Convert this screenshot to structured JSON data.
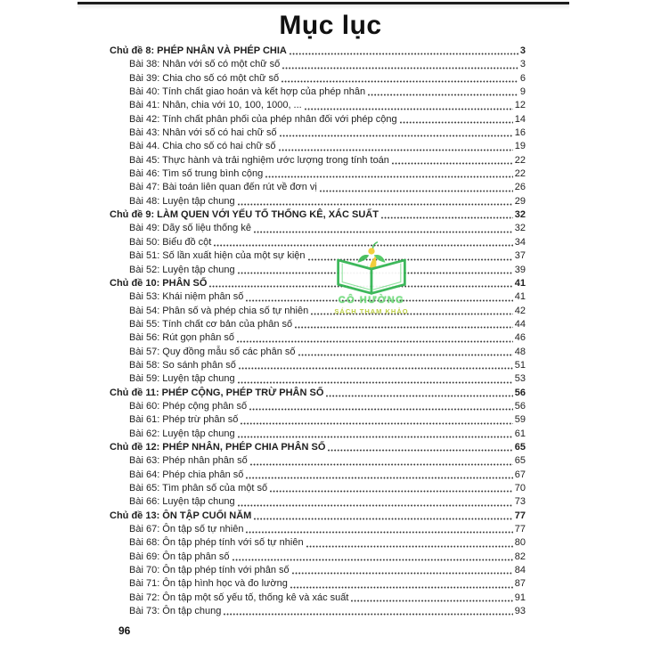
{
  "page": {
    "title": "Mục lục",
    "footer_page_number": "96"
  },
  "watermark": {
    "icon": "open-book-logo-icon",
    "line1": "CÔ HƯỜNG",
    "line2": "SÁCH THAM KHẢO",
    "colors": {
      "book_green": "#2fb34f",
      "leaf_green": "#3dbb54",
      "flame_yellow": "#f2cb2e",
      "text_green": "#6fdd79",
      "text_olive": "#b7cb34"
    }
  },
  "toc": {
    "entries": [
      {
        "level": "chapter",
        "label": "Chủ đề 8: PHÉP NHÂN VÀ PHÉP CHIA",
        "page": "3"
      },
      {
        "level": "lesson",
        "label": "Bài 38: Nhân với số có một chữ số",
        "page": "3"
      },
      {
        "level": "lesson",
        "label": "Bài 39: Chia cho số có một chữ số",
        "page": "6"
      },
      {
        "level": "lesson",
        "label": "Bài 40: Tính chất giao hoán và kết hợp của phép nhân",
        "page": "9"
      },
      {
        "level": "lesson",
        "label": "Bài 41: Nhân, chia với 10, 100, 1000, ...",
        "page": "12"
      },
      {
        "level": "lesson",
        "label": "Bài 42: Tính chất phân phối của phép nhân đối với phép cộng",
        "page": "14"
      },
      {
        "level": "lesson",
        "label": "Bài 43: Nhân với số có hai chữ số",
        "page": "16"
      },
      {
        "level": "lesson",
        "label": "Bài 44. Chia cho số có hai chữ số",
        "page": "19"
      },
      {
        "level": "lesson",
        "label": "Bài 45: Thực hành và trải nghiệm ước lượng trong tính toán",
        "page": "22"
      },
      {
        "level": "lesson",
        "label": "Bài 46: Tìm số trung bình cộng",
        "page": "22"
      },
      {
        "level": "lesson",
        "label": "Bài 47: Bài toán liên quan đến rút về đơn vị",
        "page": "26"
      },
      {
        "level": "lesson",
        "label": "Bài 48: Luyện tập chung",
        "page": "29"
      },
      {
        "level": "chapter",
        "label": "Chủ đề 9: LÀM QUEN VỚI YẾU TỐ THỐNG KÊ, XÁC SUẤT",
        "page": "32"
      },
      {
        "level": "lesson",
        "label": "Bài 49: Dãy số liệu thống kê",
        "page": "32"
      },
      {
        "level": "lesson",
        "label": "Bài 50: Biểu đồ cột",
        "page": "34"
      },
      {
        "level": "lesson",
        "label": "Bài 51: Số lần xuất hiện của một sự kiện",
        "page": "37"
      },
      {
        "level": "lesson",
        "label": "Bài 52: Luyện tập chung",
        "page": "39"
      },
      {
        "level": "chapter",
        "label": "Chủ đề 10: PHÂN SỐ",
        "page": "41"
      },
      {
        "level": "lesson",
        "label": "Bài 53: Khái niệm phân số",
        "page": "41"
      },
      {
        "level": "lesson",
        "label": "Bài 54: Phân số và phép chia số tự nhiên",
        "page": "42"
      },
      {
        "level": "lesson",
        "label": "Bài 55: Tính chất cơ bản của phân số",
        "page": "44"
      },
      {
        "level": "lesson",
        "label": "Bài 56: Rút gọn phân số",
        "page": "46"
      },
      {
        "level": "lesson",
        "label": "Bài 57: Quy đồng mẫu số các phân số",
        "page": "48"
      },
      {
        "level": "lesson",
        "label": "Bài 58: So sánh phân số",
        "page": "51"
      },
      {
        "level": "lesson",
        "label": "Bài 59: Luyện tập chung",
        "page": "53"
      },
      {
        "level": "chapter",
        "label": "Chủ đề 11: PHÉP CỘNG, PHÉP TRỪ PHÂN SỐ",
        "page": "56"
      },
      {
        "level": "lesson",
        "label": "Bài 60: Phép cộng phân số",
        "page": "56"
      },
      {
        "level": "lesson",
        "label": "Bài 61: Phép trừ phân số",
        "page": "59"
      },
      {
        "level": "lesson",
        "label": "Bài 62: Luyện tập chung",
        "page": "61"
      },
      {
        "level": "chapter",
        "label": "Chủ đề 12: PHÉP NHÂN, PHÉP CHIA PHÂN SỐ",
        "page": "65"
      },
      {
        "level": "lesson",
        "label": "Bài 63: Phép nhân phân số",
        "page": "65"
      },
      {
        "level": "lesson",
        "label": "Bài 64: Phép chia phân số",
        "page": "67"
      },
      {
        "level": "lesson",
        "label": "Bài 65: Tìm phân số của một số",
        "page": "70"
      },
      {
        "level": "lesson",
        "label": "Bài 66: Luyện tập chung",
        "page": "73"
      },
      {
        "level": "chapter",
        "label": "Chủ đề 13: ÔN TẬP CUỐI NĂM",
        "page": "77"
      },
      {
        "level": "lesson",
        "label": "Bài 67: Ôn tập số tự nhiên",
        "page": "77"
      },
      {
        "level": "lesson",
        "label": "Bài 68: Ôn tập phép tính với số tự nhiên",
        "page": "80"
      },
      {
        "level": "lesson",
        "label": "Bài 69: Ôn tập phân số",
        "page": "82"
      },
      {
        "level": "lesson",
        "label": "Bài 70: Ôn tập phép tính với phân số",
        "page": "84"
      },
      {
        "level": "lesson",
        "label": "Bài 71: Ôn tập hình học và đo lường",
        "page": "87"
      },
      {
        "level": "lesson",
        "label": "Bài 72: Ôn tập một số yếu tố, thống kê và xác suất",
        "page": "91"
      },
      {
        "level": "lesson",
        "label": "Bài 73: Ôn tập chung",
        "page": "93"
      }
    ]
  }
}
